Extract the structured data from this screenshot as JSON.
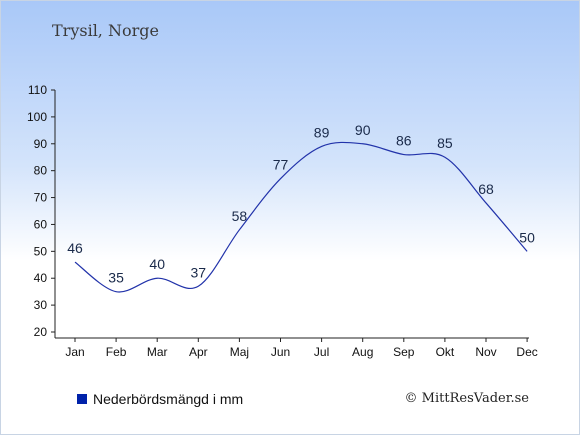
{
  "header": {
    "title": "Trysil, Norge"
  },
  "legend": {
    "label": "Nederbördsmängd i mm"
  },
  "credit": {
    "text": "© MittResVader.se"
  },
  "colors": {
    "line": "#2233aa",
    "legend_swatch": "#0022aa"
  },
  "chart_data": {
    "type": "line",
    "categories": [
      "Jan",
      "Feb",
      "Mar",
      "Apr",
      "Maj",
      "Jun",
      "Jul",
      "Aug",
      "Sep",
      "Okt",
      "Nov",
      "Dec"
    ],
    "series": [
      {
        "name": "Nederbördsmängd i mm",
        "values": [
          46,
          35,
          40,
          37,
          58,
          77,
          89,
          90,
          86,
          85,
          68,
          50
        ]
      }
    ],
    "y_ticks": [
      20,
      30,
      40,
      50,
      60,
      70,
      80,
      90,
      100,
      110
    ],
    "ylim": [
      20,
      110
    ],
    "grid": false,
    "legend_position": "bottom-left"
  }
}
